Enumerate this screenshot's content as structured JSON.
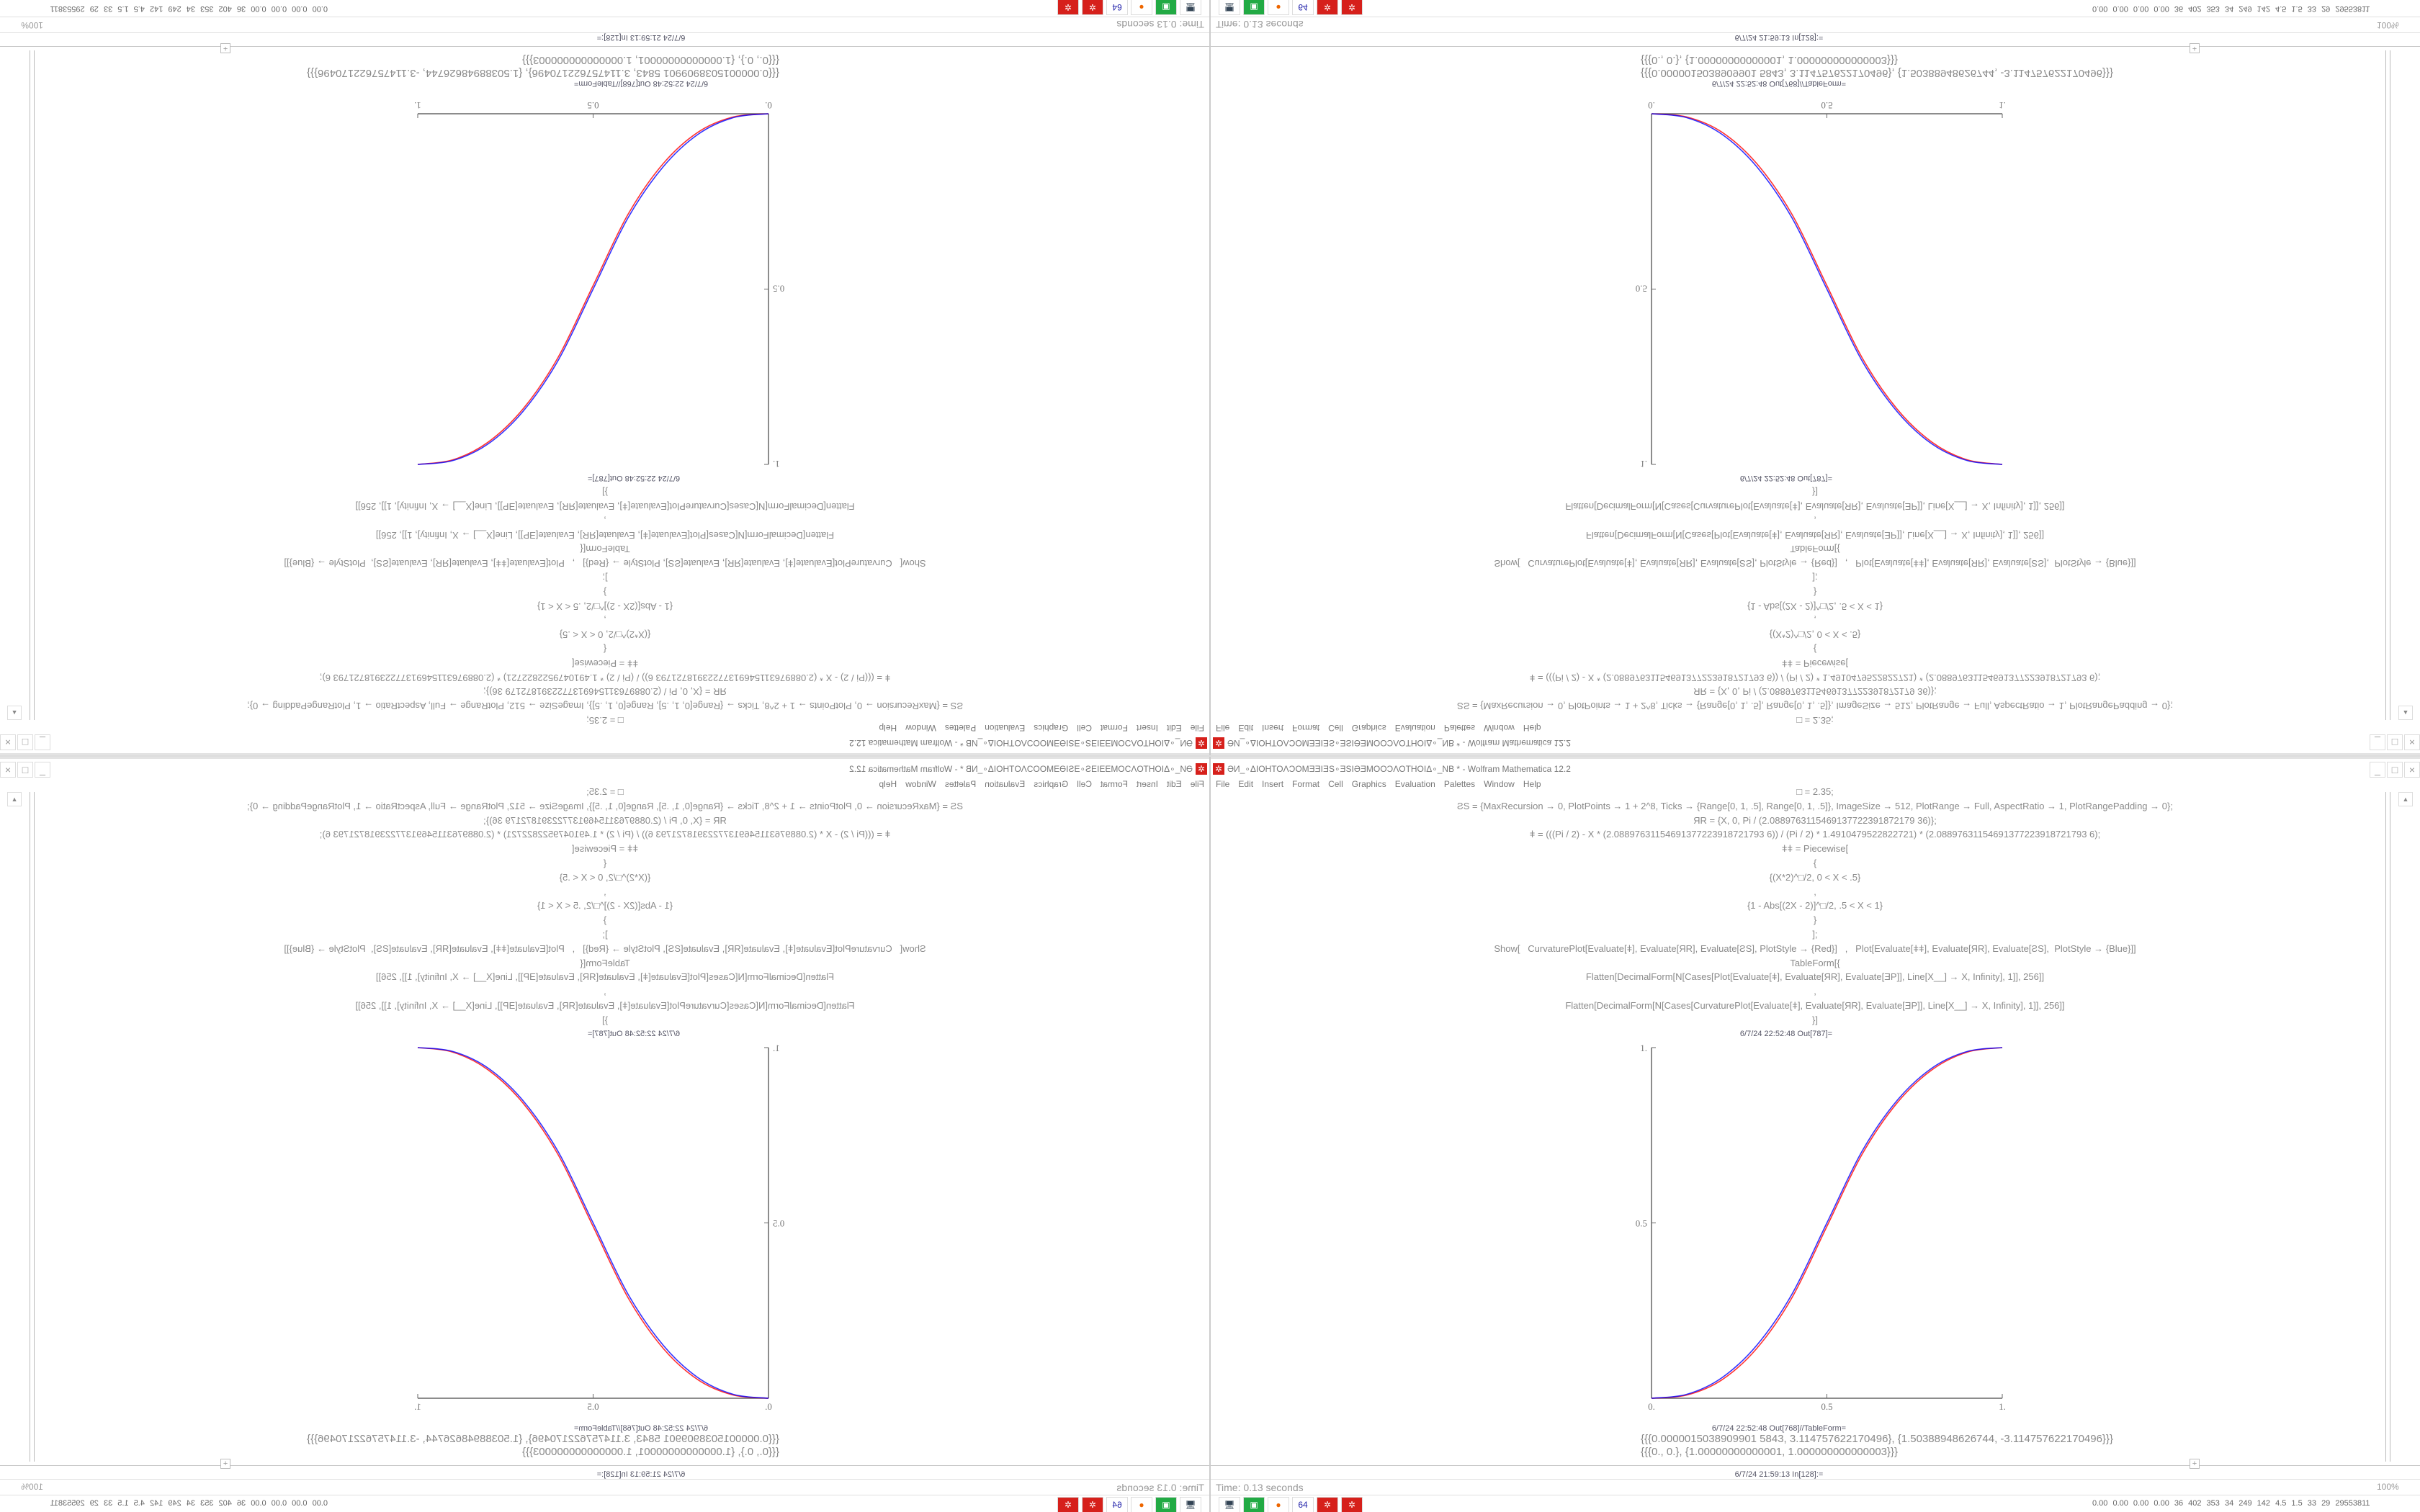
{
  "window": {
    "title": "ƏИ_∘ΔIOHTOɅƆOMƎƎIƎS∘ƎSIƏƎMOOƆɅOTHOIΔ∘_NB * - Wolfram Mathematica 12.2",
    "minimize": "_",
    "maximize": "□",
    "close": "×"
  },
  "menu": [
    "File",
    "Edit",
    "Insert",
    "Format",
    "Cell",
    "Graphics",
    "Evaluation",
    "Palettes",
    "Window",
    "Help"
  ],
  "code_lines": [
    "□ = 2.35;",
    "ƧS = {MaxRecursion → 0, PlotPoints → 1 + 2^8, Ticks → {Range[0, 1, .5], Range[0, 1, .5]}, ImageSize → 512, PlotRange → Full, AspectRatio → 1, PlotRangePadding → 0};",
    "ЯR = {X, 0, Pi / (2.0889763115469137722391872179 36)};",
    "ǂ = (((Pi / 2) - X * (2.08897631154691377223918721793 6)) / (Pi / 2) * 1.4910479522822721) * (2.08897631154691377223918721793 6);",
    "ǂǂ = Piecewise[",
    "{",
    "{(X*2)^□/2, 0 < X < .5}",
    ",",
    "{1 - Abs[(2X - 2)]^□/2, .5 < X < 1}",
    "}",
    "];",
    "Show[   CurvaturePlot[Evaluate[ǂ], Evaluate[ЯR], Evaluate[ƧS], PlotStyle → {Red}]   ,   Plot[Evaluate[ǂǂ], Evaluate[ЯR], Evaluate[ƧS],  PlotStyle → {Blue}]]",
    "TableForm[{",
    "Flatten[DecimalForm[N[Cases[Plot[Evaluate[ǂ], Evaluate[ЯR], Evaluate[ƎP]], Line[X__] → X, Infinity], 1]], 256]]",
    ",",
    "Flatten[DecimalForm[N[Cases[CurvaturePlot[Evaluate[ǂ], Evaluate[ЯR], Evaluate[ƎP]], Line[X__] → X, Infinity], 1]], 256]]",
    "}]"
  ],
  "out_plot_label": "6/7/24 22:52:48 Out[787]=",
  "out_table_label": "6/7/24 22:52:48 Out[768]//TableForm=",
  "out_table_rows": [
    "{{{0.0000015038909901 5843, 3.114757622170496}, {1.50388948626744, -3.114757622170496}}}",
    "{{{0., 0.}, {1.00000000000001, 1.000000000000003}}}"
  ],
  "in_label": "6/7/24 21:59:13 In[128]:=",
  "status": {
    "time": "Time: 0.13 seconds",
    "zoom": "100%"
  },
  "taskbar": {
    "icons": [
      "remote-desktop-icon",
      "terminal-icon",
      "firefox-icon",
      "floppy-64-icon",
      "mathematica-icon",
      "mathematica-icon"
    ],
    "tray": "0.00 0.00 0.00 0.00  36  402  353  34  249  142  4.5  1.5  33  29  29553811"
  },
  "chart_data": {
    "type": "line",
    "xlim": [
      0,
      1
    ],
    "ylim": [
      0,
      1
    ],
    "xticks": [
      "0.",
      "0.5",
      "1."
    ],
    "yticks": [
      "0.",
      "0.5",
      "1."
    ],
    "x": [
      0,
      0.1,
      0.2,
      0.3,
      0.4,
      0.5,
      0.6,
      0.7,
      0.8,
      0.9,
      1
    ],
    "series": [
      {
        "color": "#ff0000",
        "values": [
          0,
          0.009,
          0.052,
          0.142,
          0.286,
          0.49,
          0.695,
          0.842,
          0.937,
          0.987,
          1
        ]
      },
      {
        "color": "#0000ff",
        "values": [
          0,
          0.011,
          0.058,
          0.151,
          0.296,
          0.5,
          0.704,
          0.849,
          0.942,
          0.989,
          1
        ]
      }
    ]
  }
}
